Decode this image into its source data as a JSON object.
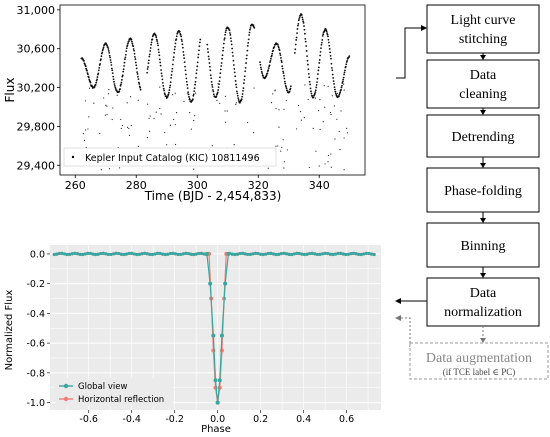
{
  "top_chart": {
    "ylabel": "Flux",
    "xlabel": "Time (BJD - 2,454,833)",
    "yticks": [
      "31,000",
      "30,600",
      "30,200",
      "29,800",
      "29,400"
    ],
    "xticks": [
      "260",
      "280",
      "300",
      "320",
      "340"
    ],
    "legend": "Kepler Input Catalog (KIC) 10811496"
  },
  "bottom_chart": {
    "ylabel": "Normalized Flux",
    "xlabel": "Phase",
    "yticks": [
      "0.0",
      "-0.2",
      "-0.4",
      "-0.6",
      "-0.8",
      "-1.0"
    ],
    "xticks": [
      "-0.6",
      "-0.4",
      "-0.2",
      "0.0",
      "0.2",
      "0.4",
      "0.6"
    ],
    "legend": [
      "Global view",
      "Horizontal reflection"
    ]
  },
  "chart_data": [
    {
      "type": "scatter",
      "xlabel": "Time (BJD - 2,454,833)",
      "ylabel": "Flux",
      "xlim": [
        255,
        355
      ],
      "ylim": [
        29300,
        31050
      ],
      "series": [
        {
          "name": "Kepler Input Catalog (KIC) 10811496",
          "x": [
            262,
            266,
            270,
            274,
            278,
            282,
            286,
            290,
            294,
            298,
            302,
            306,
            310,
            314,
            318,
            322,
            326,
            330,
            334,
            338,
            342,
            346,
            350
          ],
          "y": [
            30500,
            30200,
            30650,
            30150,
            30700,
            30150,
            30750,
            30100,
            30780,
            30050,
            30800,
            30100,
            30820,
            30050,
            30850,
            30300,
            30650,
            30150,
            30950,
            30100,
            30800,
            30100,
            30520
          ]
        }
      ],
      "color": "#111111"
    },
    {
      "type": "line",
      "xlabel": "Phase",
      "ylabel": "Normalized Flux",
      "xlim": [
        -0.78,
        0.76
      ],
      "ylim": [
        -1.05,
        0.06
      ],
      "series": [
        {
          "name": "Global view",
          "x": [
            -0.6,
            -0.2,
            -0.05,
            -0.035,
            -0.02,
            -0.01,
            0.0,
            0.01,
            0.02,
            0.035,
            0.05,
            0.2,
            0.6
          ],
          "y": [
            0.0,
            0.0,
            0.0,
            -0.2,
            -0.55,
            -0.85,
            -1.0,
            -0.85,
            -0.55,
            -0.2,
            0.0,
            0.0,
            0.0
          ],
          "color": "#3aa6a0"
        },
        {
          "name": "Horizontal reflection",
          "x": [
            -0.6,
            -0.2,
            -0.04,
            -0.03,
            -0.02,
            -0.01,
            0.0,
            0.01,
            0.02,
            0.03,
            0.04,
            0.2,
            0.6
          ],
          "y": [
            0.0,
            0.0,
            0.0,
            -0.3,
            -0.65,
            -0.9,
            -1.0,
            -0.9,
            -0.65,
            -0.3,
            0.0,
            0.0,
            0.0
          ],
          "color": "#f08072"
        }
      ]
    }
  ],
  "flow": {
    "steps": [
      [
        "Light curve",
        "stitching"
      ],
      [
        "Data",
        "cleaning"
      ],
      [
        "Detrending"
      ],
      [
        "Phase-folding"
      ],
      [
        "Binning"
      ],
      [
        "Data",
        "normalization"
      ]
    ],
    "augment_title": "Data augmentation",
    "augment_note": "(if TCE label ∈ PC)"
  }
}
